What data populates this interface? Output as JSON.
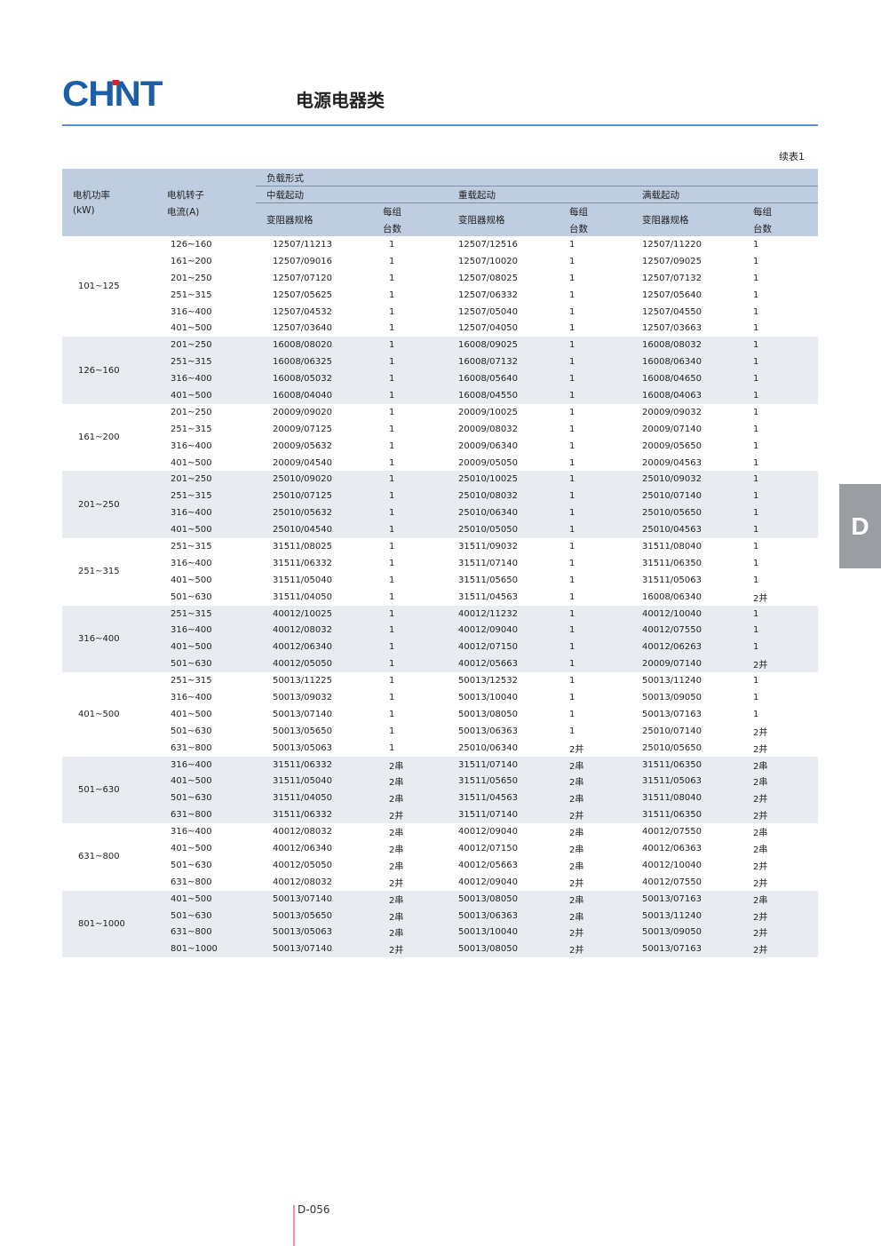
{
  "header": {
    "logo_text": "CHNT",
    "brand_color": "#1a5fa8",
    "title": "电源电器类",
    "continued_label": "续表1"
  },
  "table": {
    "col_motor_power": "电机功率",
    "col_motor_power_unit": "(kW)",
    "col_rotor_current": "电机转子",
    "col_rotor_current_unit": "电流(A)",
    "load_type": "负载形式",
    "groups": [
      "中载起动",
      "重载起动",
      "满载起动"
    ],
    "spec_label": "变阻器规格",
    "count_label_1": "每组",
    "count_label_2": "台数",
    "sections": [
      {
        "power": "101~125",
        "rows": [
          [
            "126~160",
            "12507/11213",
            "1",
            "12507/12516",
            "1",
            "12507/11220",
            "1"
          ],
          [
            "161~200",
            "12507/09016",
            "1",
            "12507/10020",
            "1",
            "12507/09025",
            "1"
          ],
          [
            "201~250",
            "12507/07120",
            "1",
            "12507/08025",
            "1",
            "12507/07132",
            "1"
          ],
          [
            "251~315",
            "12507/05625",
            "1",
            "12507/06332",
            "1",
            "12507/05640",
            "1"
          ],
          [
            "316~400",
            "12507/04532",
            "1",
            "12507/05040",
            "1",
            "12507/04550",
            "1"
          ],
          [
            "401~500",
            "12507/03640",
            "1",
            "12507/04050",
            "1",
            "12507/03663",
            "1"
          ]
        ]
      },
      {
        "power": "126~160",
        "rows": [
          [
            "201~250",
            "16008/08020",
            "1",
            "16008/09025",
            "1",
            "16008/08032",
            "1"
          ],
          [
            "251~315",
            "16008/06325",
            "1",
            "16008/07132",
            "1",
            "16008/06340",
            "1"
          ],
          [
            "316~400",
            "16008/05032",
            "1",
            "16008/05640",
            "1",
            "16008/04650",
            "1"
          ],
          [
            "401~500",
            "16008/04040",
            "1",
            "16008/04550",
            "1",
            "16008/04063",
            "1"
          ]
        ]
      },
      {
        "power": "161~200",
        "rows": [
          [
            "201~250",
            "20009/09020",
            "1",
            "20009/10025",
            "1",
            "20009/09032",
            "1"
          ],
          [
            "251~315",
            "20009/07125",
            "1",
            "20009/08032",
            "1",
            "20009/07140",
            "1"
          ],
          [
            "316~400",
            "20009/05632",
            "1",
            "20009/06340",
            "1",
            "20009/05650",
            "1"
          ],
          [
            "401~500",
            "20009/04540",
            "1",
            "20009/05050",
            "1",
            "20009/04563",
            "1"
          ]
        ]
      },
      {
        "power": "201~250",
        "rows": [
          [
            "201~250",
            "25010/09020",
            "1",
            "25010/10025",
            "1",
            "25010/09032",
            "1"
          ],
          [
            "251~315",
            "25010/07125",
            "1",
            "25010/08032",
            "1",
            "25010/07140",
            "1"
          ],
          [
            "316~400",
            "25010/05632",
            "1",
            "25010/06340",
            "1",
            "25010/05650",
            "1"
          ],
          [
            "401~500",
            "25010/04540",
            "1",
            "25010/05050",
            "1",
            "25010/04563",
            "1"
          ]
        ]
      },
      {
        "power": "251~315",
        "rows": [
          [
            "251~315",
            "31511/08025",
            "1",
            "31511/09032",
            "1",
            "31511/08040",
            "1"
          ],
          [
            "316~400",
            "31511/06332",
            "1",
            "31511/07140",
            "1",
            "31511/06350",
            "1"
          ],
          [
            "401~500",
            "31511/05040",
            "1",
            "31511/05650",
            "1",
            "31511/05063",
            "1"
          ],
          [
            "501~630",
            "31511/04050",
            "1",
            "31511/04563",
            "1",
            "16008/06340",
            "2并"
          ]
        ]
      },
      {
        "power": "316~400",
        "rows": [
          [
            "251~315",
            "40012/10025",
            "1",
            "40012/11232",
            "1",
            "40012/10040",
            "1"
          ],
          [
            "316~400",
            "40012/08032",
            "1",
            "40012/09040",
            "1",
            "40012/07550",
            "1"
          ],
          [
            "401~500",
            "40012/06340",
            "1",
            "40012/07150",
            "1",
            "40012/06263",
            "1"
          ],
          [
            "501~630",
            "40012/05050",
            "1",
            "40012/05663",
            "1",
            "20009/07140",
            "2并"
          ]
        ]
      },
      {
        "power": "401~500",
        "rows": [
          [
            "251~315",
            "50013/11225",
            "1",
            "50013/12532",
            "1",
            "50013/11240",
            "1"
          ],
          [
            "316~400",
            "50013/09032",
            "1",
            "50013/10040",
            "1",
            "50013/09050",
            "1"
          ],
          [
            "401~500",
            "50013/07140",
            "1",
            "50013/08050",
            "1",
            "50013/07163",
            "1"
          ],
          [
            "501~630",
            "50013/05650",
            "1",
            "50013/06363",
            "1",
            "25010/07140",
            "2并"
          ],
          [
            "631~800",
            "50013/05063",
            "1",
            "25010/06340",
            "2并",
            "25010/05650",
            "2并"
          ]
        ]
      },
      {
        "power": "501~630",
        "rows": [
          [
            "316~400",
            "31511/06332",
            "2串",
            "31511/07140",
            "2串",
            "31511/06350",
            "2串"
          ],
          [
            "401~500",
            "31511/05040",
            "2串",
            "31511/05650",
            "2串",
            "31511/05063",
            "2串"
          ],
          [
            "501~630",
            "31511/04050",
            "2串",
            "31511/04563",
            "2串",
            "31511/08040",
            "2并"
          ],
          [
            "631~800",
            "31511/06332",
            "2并",
            "31511/07140",
            "2并",
            "31511/06350",
            "2并"
          ]
        ]
      },
      {
        "power": "631~800",
        "rows": [
          [
            "316~400",
            "40012/08032",
            "2串",
            "40012/09040",
            "2串",
            "40012/07550",
            "2串"
          ],
          [
            "401~500",
            "40012/06340",
            "2串",
            "40012/07150",
            "2串",
            "40012/06363",
            "2串"
          ],
          [
            "501~630",
            "40012/05050",
            "2串",
            "40012/05663",
            "2串",
            "40012/10040",
            "2并"
          ],
          [
            "631~800",
            "40012/08032",
            "2并",
            "40012/09040",
            "2并",
            "40012/07550",
            "2并"
          ]
        ]
      },
      {
        "power": "801~1000",
        "rows": [
          [
            "401~500",
            "50013/07140",
            "2串",
            "50013/08050",
            "2串",
            "50013/07163",
            "2串"
          ],
          [
            "501~630",
            "50013/05650",
            "2串",
            "50013/06363",
            "2串",
            "50013/11240",
            "2并"
          ],
          [
            "631~800",
            "50013/05063",
            "2串",
            "50013/10040",
            "2并",
            "50013/09050",
            "2并"
          ],
          [
            "801~1000",
            "50013/07140",
            "2并",
            "50013/08050",
            "2并",
            "50013/07163",
            "2并"
          ]
        ]
      }
    ]
  },
  "side_tab": {
    "label": "D"
  },
  "footer": {
    "page_number": "D-056"
  }
}
